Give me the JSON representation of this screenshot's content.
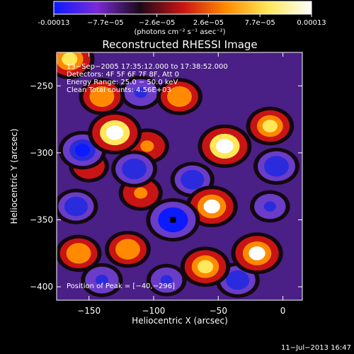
{
  "colorbar": {
    "tick_labels": [
      "-0.00013",
      "−7.7e−05",
      "−2.6e−05",
      "2.6e−05",
      "7.7e−05",
      "0.00013"
    ],
    "units": "(photons cm⁻² s⁻¹ asec⁻²)",
    "colors": [
      "#0b1aff",
      "#7a2bd6",
      "#1a0a18",
      "#c81414",
      "#ff8a00",
      "#ffe85a",
      "#ffffff"
    ]
  },
  "annotations": {
    "time_range": "13−Sep−2005 17:35:12.000 to 17:38:52.000",
    "detectors": "Detectors: 4F 5F 6F 7F 8F, Att 0",
    "energy": "Energy Range: 25.0 − 50.0 keV",
    "clean": "Clean     Total counts: 4.56E+03",
    "peak": "Position of Peak = [−40,−296]"
  },
  "timestamp": "11−Jul−2013 16:47",
  "chart_data": {
    "type": "heatmap",
    "title": "Reconstructed RHESSI Image",
    "xlabel": "Heliocentric X (arcsec)",
    "ylabel": "Heliocentric Y (arcsec)",
    "xlim": [
      -175,
      15
    ],
    "ylim": [
      -410,
      -225
    ],
    "x_ticks": [
      -150,
      -100,
      -50,
      0
    ],
    "y_ticks": [
      -250,
      -300,
      -350,
      -400
    ],
    "x_tick_labels": [
      "−150",
      "−100",
      "−50",
      "0"
    ],
    "y_tick_labels": [
      "−250",
      "−300",
      "−350",
      "−400"
    ],
    "zrange": [
      -0.00013,
      0.00013
    ],
    "blobs": [
      {
        "x": -130,
        "y": -285,
        "value": 0.00013
      },
      {
        "x": -45,
        "y": -295,
        "value": 0.00013
      },
      {
        "x": -55,
        "y": -340,
        "value": 0.00012
      },
      {
        "x": -10,
        "y": -280,
        "value": 0.0001
      },
      {
        "x": -140,
        "y": -258,
        "value": 9e-05
      },
      {
        "x": -80,
        "y": -258,
        "value": 9e-05
      },
      {
        "x": -105,
        "y": -295,
        "value": 8e-05
      },
      {
        "x": -165,
        "y": -230,
        "value": 0.00011
      },
      {
        "x": -20,
        "y": -375,
        "value": 0.00012
      },
      {
        "x": -60,
        "y": -385,
        "value": 0.00011
      },
      {
        "x": -120,
        "y": -372,
        "value": 9e-05
      },
      {
        "x": -158,
        "y": -375,
        "value": 9e-05
      },
      {
        "x": -110,
        "y": -330,
        "value": 8e-05
      },
      {
        "x": -150,
        "y": -310,
        "value": 6e-05
      },
      {
        "x": -85,
        "y": -350,
        "value": -0.00013
      },
      {
        "x": -155,
        "y": -298,
        "value": -0.0001
      },
      {
        "x": -115,
        "y": -312,
        "value": -9e-05
      },
      {
        "x": -5,
        "y": -310,
        "value": -9e-05
      },
      {
        "x": -160,
        "y": -340,
        "value": -8e-05
      },
      {
        "x": -140,
        "y": -395,
        "value": -7e-05
      },
      {
        "x": -35,
        "y": -395,
        "value": -8e-05
      },
      {
        "x": -90,
        "y": -395,
        "value": -6e-05
      },
      {
        "x": -70,
        "y": -320,
        "value": -8e-05
      },
      {
        "x": -10,
        "y": -340,
        "value": -6e-05
      },
      {
        "x": -110,
        "y": -255,
        "value": -7e-05
      }
    ]
  }
}
